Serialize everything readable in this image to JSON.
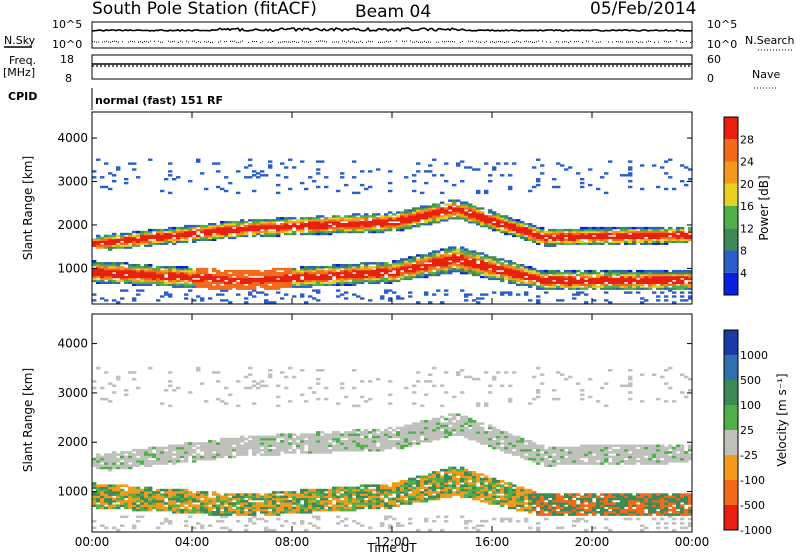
{
  "header": {
    "station": "South Pole Station (fitACF)",
    "beam": "Beam 04",
    "date": "05/Feb/2014"
  },
  "top_panels": {
    "nsky_label": "N.Sky",
    "nsky_ticks": [
      "10^5",
      "10^0"
    ],
    "nsearch_label": "N.Search",
    "nsearch_ticks": [
      "10^5",
      "10^0"
    ],
    "freq_label": "Freq.",
    "freq_unit": "[MHz]",
    "freq_ticks": [
      "18",
      "8"
    ],
    "nave_label": "Nave",
    "nave_ticks": [
      "60",
      "0"
    ],
    "cpid_label": "CPID",
    "cpid_text": "normal (fast) 151 RF"
  },
  "chart_data": [
    {
      "type": "heatmap",
      "name": "power-panel",
      "xlabel": "",
      "ylabel": "Slant Range [km]",
      "xlim": [
        0,
        24
      ],
      "ylim": [
        180,
        4600
      ],
      "yticks": [
        "1000",
        "2000",
        "3000",
        "4000"
      ],
      "ytick_values": [
        1000,
        2000,
        3000,
        4000
      ],
      "colorbar_label": "Power [dB]",
      "colorbar_ticks": [
        "4",
        "8",
        "12",
        "16",
        "20",
        "24",
        "28"
      ],
      "colorbar_colors": [
        "#0b1ee0",
        "#2a5fc8",
        "#3d8a56",
        "#4fb04a",
        "#e8d020",
        "#f39a1c",
        "#f26a1a",
        "#e82010"
      ],
      "bands": [
        {
          "t": [
            0,
            6,
            12,
            14.5,
            18,
            24
          ],
          "center": [
            1550,
            1900,
            2050,
            2350,
            1700,
            1750
          ],
          "width": [
            350,
            400,
            450,
            450,
            400,
            380
          ]
        },
        {
          "t": [
            0,
            6,
            12,
            14.5,
            18,
            24
          ],
          "center": [
            900,
            700,
            900,
            1200,
            700,
            700
          ],
          "width": [
            500,
            450,
            500,
            600,
            450,
            450
          ]
        }
      ]
    },
    {
      "type": "heatmap",
      "name": "velocity-panel",
      "xlabel": "Time UT",
      "ylabel": "Slant Range [km]",
      "xlim": [
        0,
        24
      ],
      "ylim": [
        180,
        4600
      ],
      "xticks": [
        "00:00",
        "04:00",
        "08:00",
        "12:00",
        "16:00",
        "20:00",
        "00:00"
      ],
      "xtick_values": [
        0,
        4,
        8,
        12,
        16,
        20,
        24
      ],
      "yticks": [
        "1000",
        "2000",
        "3000",
        "4000"
      ],
      "ytick_values": [
        1000,
        2000,
        3000,
        4000
      ],
      "colorbar_label": "Velocity [m s⁻¹]",
      "colorbar_ticks": [
        "1000",
        "500",
        "100",
        "25",
        "-25",
        "-100",
        "-500",
        "-1000"
      ],
      "colorbar_colors": [
        "#1a3aa8",
        "#2e6fb0",
        "#3d8a56",
        "#4fb04a",
        "#c0c0bc",
        "#f39a1c",
        "#f26a1a",
        "#e82010"
      ]
    }
  ]
}
